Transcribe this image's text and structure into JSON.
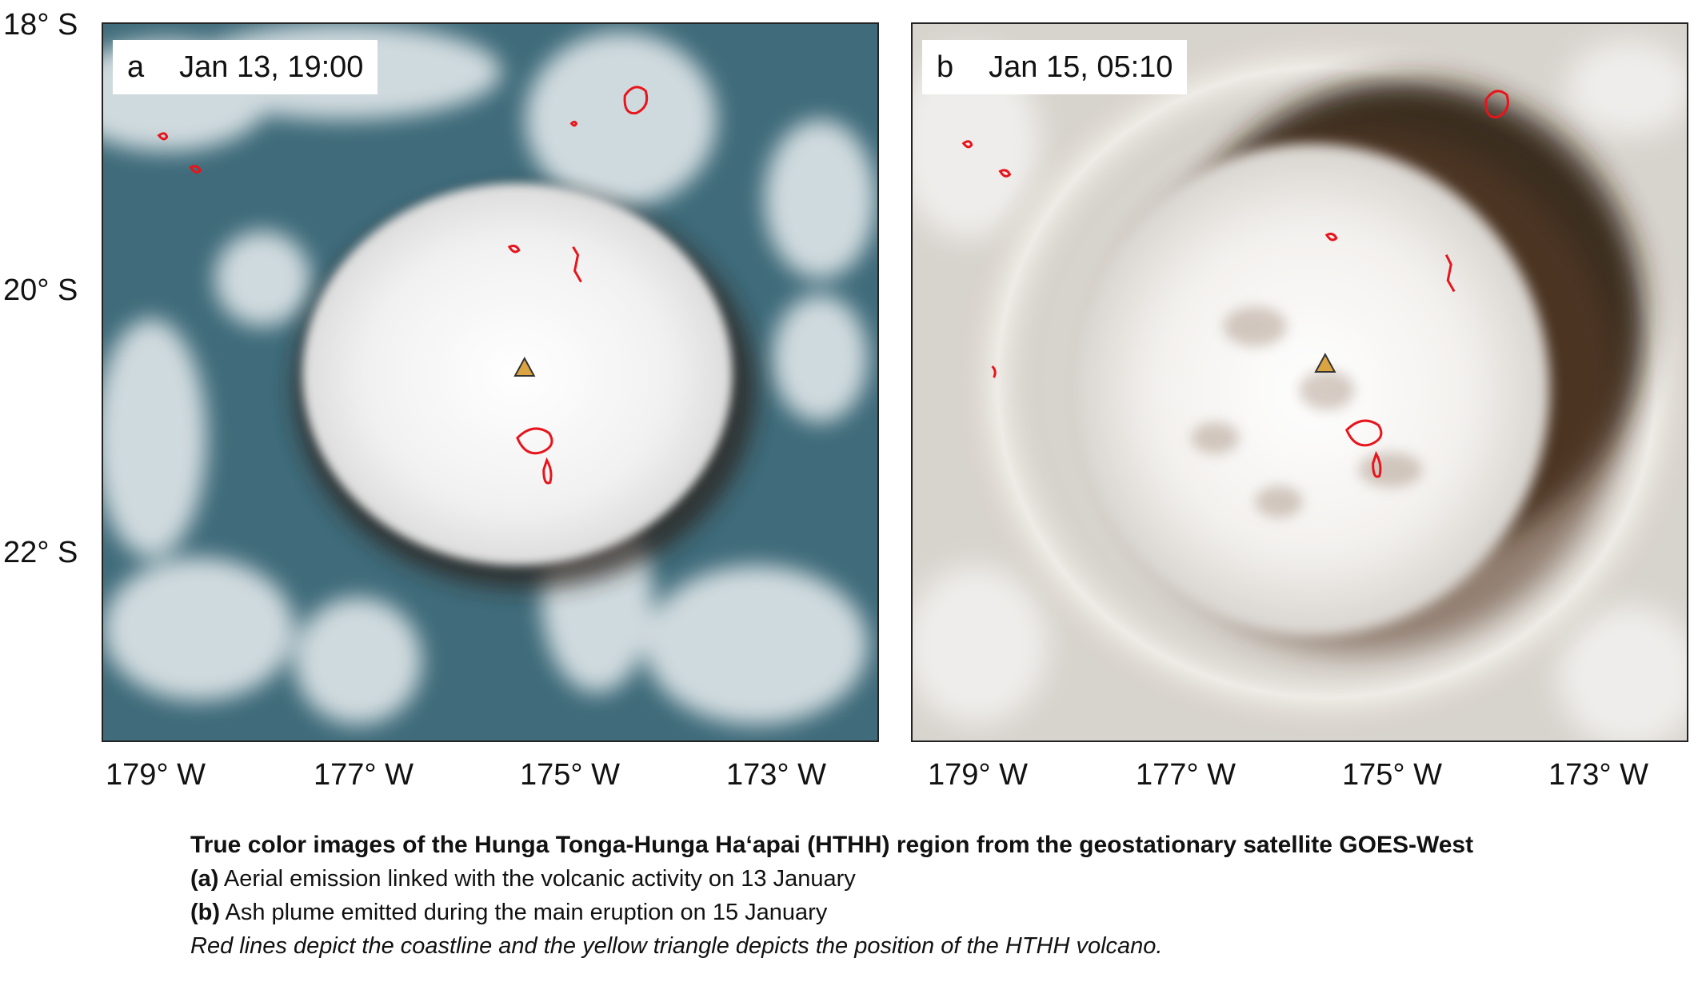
{
  "panels": [
    {
      "letter": "a",
      "timestamp": "Jan 13, 19:00"
    },
    {
      "letter": "b",
      "timestamp": "Jan 15, 05:10"
    }
  ],
  "latitude_labels": [
    "18° S",
    "20° S",
    "22° S"
  ],
  "longitude_labels": [
    "179° W",
    "177° W",
    "175° W",
    "173° W"
  ],
  "caption": {
    "title": "True color images of the Hunga Tonga-Hunga Ha‘apai (HTHH) region from the geostationary satellite GOES-West",
    "a_tag": "(a)",
    "a_text": " Aerial emission linked with the volcanic activity on 13 January",
    "b_tag": "(b)",
    "b_text": " Ash plume emitted during the main eruption on 15 January",
    "note": "Red lines depict the coastline and the yellow triangle depicts the position of the HTHH volcano."
  },
  "colors": {
    "ocean": "#3f6b7a",
    "cloud": "#f2f2f0",
    "shadow": "#3b2a1e",
    "coastline": "#e8141c",
    "volcano_marker": "#d9a441"
  },
  "icons": [
    "volcano-triangle-icon"
  ]
}
